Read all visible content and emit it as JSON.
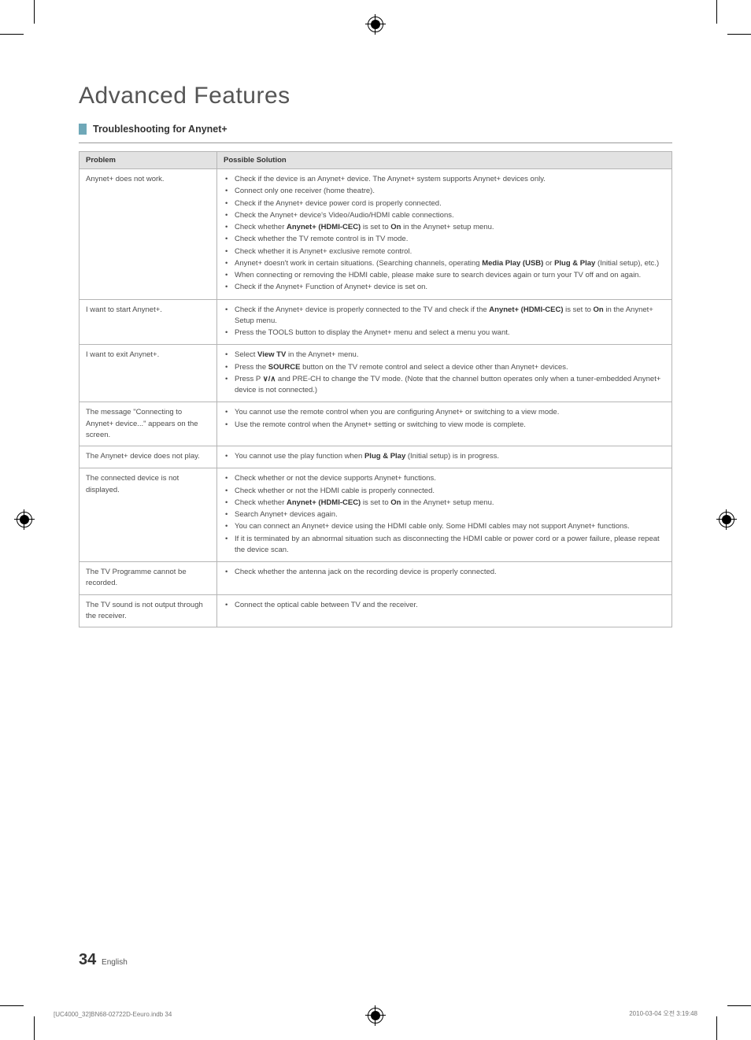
{
  "marks": {
    "color": "#000000"
  },
  "header": {
    "title": "Advanced Features"
  },
  "section": {
    "heading": "Troubleshooting for Anynet+"
  },
  "table": {
    "col_problem": "Problem",
    "col_solution": "Possible Solution",
    "rows": [
      {
        "problem": "Anynet+ does not work.",
        "items": [
          {
            "pre": "Check if the device is an Anynet+ device. The Anynet+ system supports Anynet+ devices only."
          },
          {
            "pre": "Connect only one receiver (home theatre)."
          },
          {
            "pre": "Check if the Anynet+ device power cord is properly connected."
          },
          {
            "pre": "Check the Anynet+ device's Video/Audio/HDMI cable connections."
          },
          {
            "pre": "Check whether ",
            "bold1": "Anynet+ (HDMI-CEC)",
            "mid1": " is set to ",
            "bold2": "On",
            "post": " in the Anynet+ setup menu."
          },
          {
            "pre": "Check whether the TV remote control is in TV mode."
          },
          {
            "pre": "Check whether it is Anynet+ exclusive remote control."
          },
          {
            "pre": "Anynet+ doesn't work in certain situations. (Searching channels, operating ",
            "bold1": "Media Play (USB)",
            "mid1": " or ",
            "bold2": "Plug & Play",
            "post": " (Initial setup), etc.)"
          },
          {
            "pre": "When connecting or removing the HDMI cable, please make sure to search devices again or turn your TV off and on again."
          },
          {
            "pre": "Check if the Anynet+ Function of Anynet+ device is set on."
          }
        ]
      },
      {
        "problem": "I want to start Anynet+.",
        "items": [
          {
            "pre": "Check if the Anynet+ device is properly connected to the TV and check if the ",
            "bold1": "Anynet+ (HDMI-CEC)",
            "mid1": " is set to ",
            "bold2": "On",
            "post": " in the Anynet+ Setup menu."
          },
          {
            "pre": "Press the TOOLS button to display the Anynet+ menu and select a menu you want."
          }
        ]
      },
      {
        "problem": "I want to exit Anynet+.",
        "items": [
          {
            "pre": "Select ",
            "bold1": "View TV",
            "post": " in the Anynet+ menu."
          },
          {
            "pre": "Press the ",
            "bold1": "SOURCE",
            "post": " button on the TV remote control and select a device other than Anynet+ devices."
          },
          {
            "pre": "Press P ",
            "arrows": true,
            "post": " and PRE-CH to change the TV mode. (Note that the channel button operates only when a tuner-embedded Anynet+ device is not connected.)"
          }
        ]
      },
      {
        "problem": "The message \"Connecting to Anynet+ device...\" appears on the screen.",
        "items": [
          {
            "pre": "You cannot use the remote control when you are configuring Anynet+ or switching to a view mode."
          },
          {
            "pre": "Use the remote control when the Anynet+ setting or switching to view mode is complete."
          }
        ]
      },
      {
        "problem": "The Anynet+ device does not play.",
        "items": [
          {
            "pre": "You cannot use the play function when ",
            "bold1": "Plug & Play",
            "post": " (Initial setup) is in progress."
          }
        ]
      },
      {
        "problem": "The connected device is not displayed.",
        "items": [
          {
            "pre": "Check whether or not the device supports Anynet+ functions."
          },
          {
            "pre": "Check whether or not the HDMI cable is properly connected."
          },
          {
            "pre": "Check whether ",
            "bold1": "Anynet+ (HDMI-CEC)",
            "mid1": " is set to ",
            "bold2": "On",
            "post": " in the Anynet+ setup menu."
          },
          {
            "pre": "Search Anynet+ devices again."
          },
          {
            "pre": "You can connect an Anynet+ device using the HDMI cable only. Some HDMI cables may not support Anynet+ functions."
          },
          {
            "pre": "If it is terminated by an abnormal situation such as disconnecting the HDMI cable or power cord or a power failure, please repeat the device scan."
          }
        ]
      },
      {
        "problem": "The TV Programme cannot be recorded.",
        "items": [
          {
            "pre": "Check whether the antenna jack on the recording device is properly connected."
          }
        ]
      },
      {
        "problem": "The TV sound is not output through the receiver.",
        "items": [
          {
            "pre": "Connect the optical cable between TV and the receiver."
          }
        ]
      }
    ]
  },
  "footer": {
    "page_number": "34",
    "page_lang": "English",
    "left": "[UC4000_32]BN68-02722D-Eeuro.indb   34",
    "right": "2010-03-04   오전 3:19:48"
  }
}
